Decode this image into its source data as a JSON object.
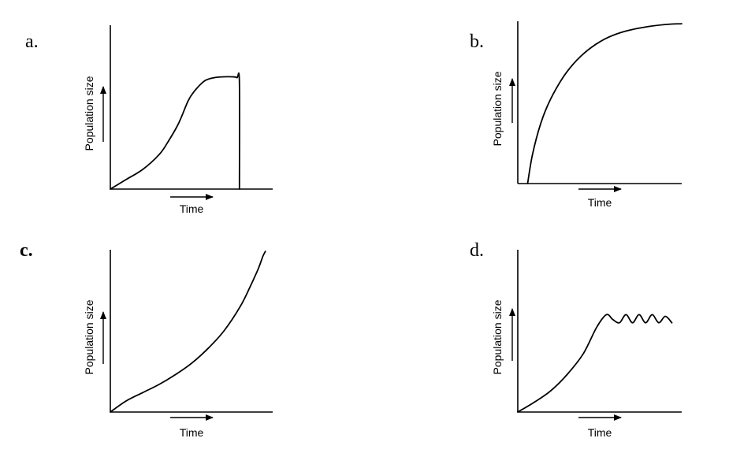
{
  "chart_data": [
    {
      "panel": "a.",
      "type": "line",
      "xlabel": "Time",
      "ylabel": "Population size",
      "xlim": [
        0,
        10
      ],
      "ylim": [
        0,
        10
      ],
      "axis_ticks": false,
      "series": [
        {
          "x": [
            0,
            1,
            2,
            3,
            3.5,
            4.2,
            4.8,
            5.2,
            5.8,
            6.4,
            7.0,
            7.5,
            7.8,
            7.95,
            7.95
          ],
          "y": [
            0,
            0.6,
            1.2,
            2.1,
            2.8,
            4.0,
            5.4,
            6.0,
            6.6,
            6.8,
            6.85,
            6.85,
            6.8,
            6.5,
            0
          ]
        }
      ]
    },
    {
      "panel": "b.",
      "type": "line",
      "xlabel": "Time",
      "ylabel": "Population size",
      "xlim": [
        0,
        10
      ],
      "ylim": [
        0,
        10
      ],
      "axis_ticks": false,
      "series": [
        {
          "x": [
            0.6,
            0.9,
            1.4,
            2.0,
            2.8,
            3.6,
            4.5,
            5.5,
            6.6,
            7.8,
            9.0,
            10.0
          ],
          "y": [
            0,
            1.8,
            3.7,
            5.2,
            6.6,
            7.6,
            8.4,
            9.0,
            9.4,
            9.65,
            9.8,
            9.85
          ]
        }
      ]
    },
    {
      "panel": "c.",
      "type": "line",
      "xlabel": "Time",
      "ylabel": "Population size",
      "xlim": [
        0,
        10
      ],
      "ylim": [
        0,
        10
      ],
      "axis_ticks": false,
      "series": [
        {
          "x": [
            0,
            1.0,
            2.0,
            3.0,
            4.0,
            5.0,
            6.0,
            7.0,
            8.0,
            8.6,
            9.1,
            9.4,
            9.55
          ],
          "y": [
            0,
            0.7,
            1.2,
            1.7,
            2.3,
            3.0,
            3.9,
            5.0,
            6.5,
            7.7,
            8.8,
            9.6,
            9.9
          ]
        }
      ]
    },
    {
      "panel": "d.",
      "type": "line",
      "xlabel": "Time",
      "ylabel": "Population size",
      "xlim": [
        0,
        10
      ],
      "ylim": [
        0,
        10
      ],
      "axis_ticks": false,
      "series": [
        {
          "x": [
            0,
            1.0,
            2.0,
            3.0,
            4.0,
            4.8,
            5.4,
            5.8,
            6.2,
            6.6,
            7.0,
            7.4,
            7.8,
            8.2,
            8.6,
            9.0,
            9.4
          ],
          "y": [
            0,
            0.6,
            1.3,
            2.3,
            3.6,
            5.2,
            6.0,
            5.7,
            5.5,
            6.0,
            5.5,
            6.0,
            5.5,
            6.0,
            5.5,
            5.9,
            5.5
          ]
        }
      ]
    }
  ]
}
